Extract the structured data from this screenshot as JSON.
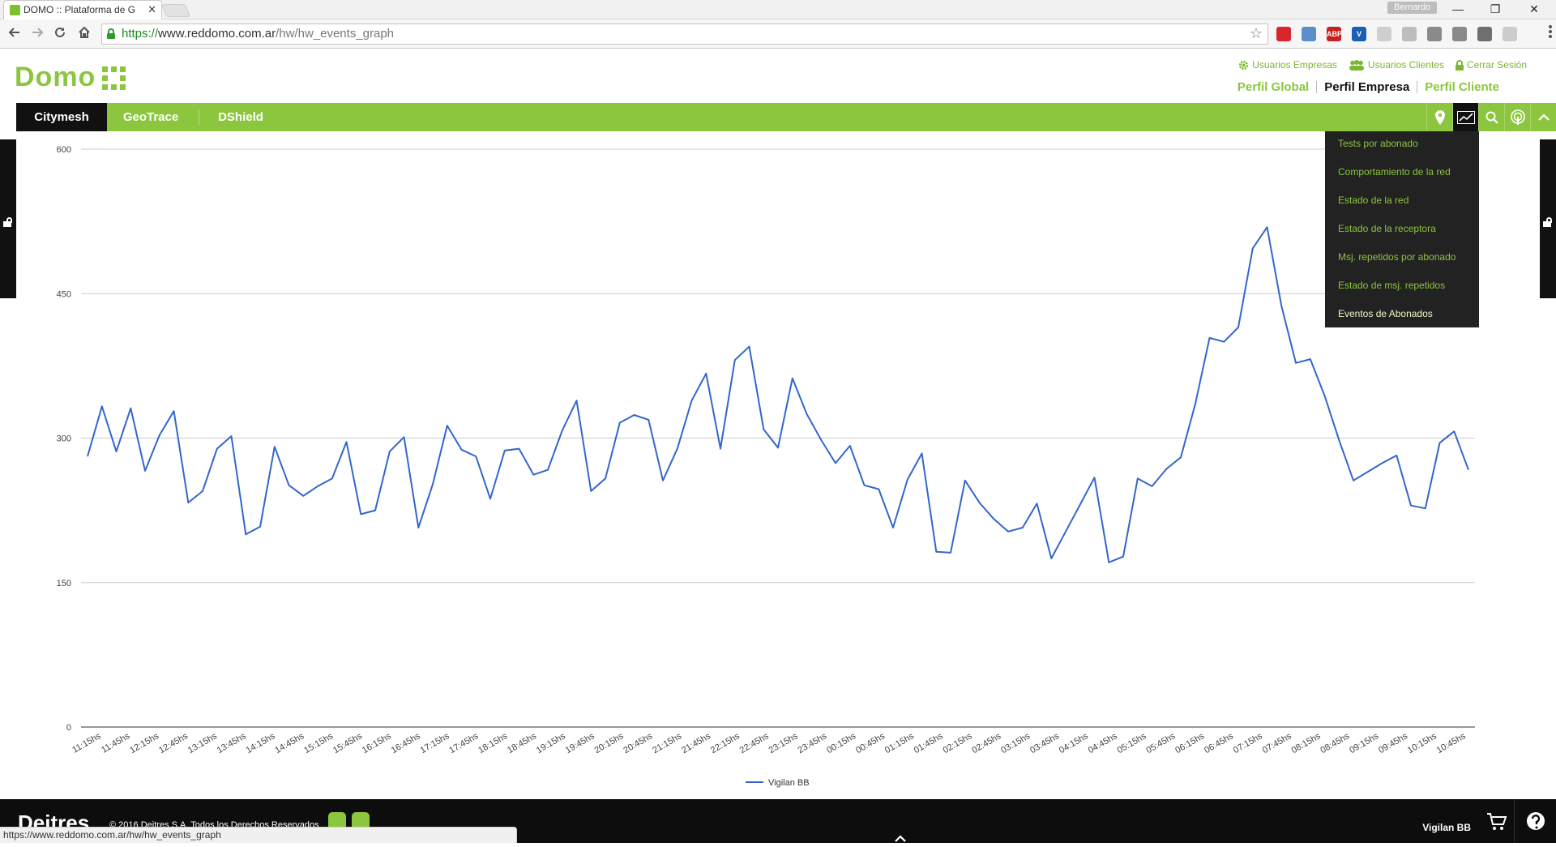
{
  "browser": {
    "tab_title": "DOMO :: Plataforma de G",
    "tab_close": "✕",
    "profile_name": "Bernardo",
    "window_buttons": [
      "—",
      "❐",
      "✕"
    ],
    "url_protocol": "https://",
    "url_host": "www.reddomo.com.ar",
    "url_path": "/hw/hw_events_graph",
    "extensions": [
      {
        "name": "book-ext",
        "label": "",
        "color": "#d9262c"
      },
      {
        "name": "map-ext",
        "label": "",
        "color": "#5b8fc9"
      },
      {
        "name": "abp-ext",
        "label": "ABP",
        "color": "#c91f1f"
      },
      {
        "name": "v-ext",
        "label": "V",
        "color": "#1a5fb4"
      },
      {
        "name": "ghost-ext",
        "label": "",
        "color": "#cfcfcf"
      },
      {
        "name": "mouse-ext",
        "label": "",
        "color": "#bdbdbd"
      },
      {
        "name": "doc-ext",
        "label": "",
        "color": "#8a8a8a"
      },
      {
        "name": "chat-ext",
        "label": "",
        "color": "#8a8a8a"
      },
      {
        "name": "box-ext",
        "label": "",
        "color": "#6f6f6f"
      },
      {
        "name": "wand-ext",
        "label": "",
        "color": "#cccccc"
      }
    ],
    "status_url": "https://www.reddomo.com.ar/hw/hw_events_graph"
  },
  "header": {
    "logo_text": "Domo",
    "top_links": {
      "usuarios_empresas": "Usuarios Empresas",
      "usuarios_clientes": "Usuarios Clientes",
      "cerrar_sesion": "Cerrar Sesión"
    },
    "profile_links": {
      "global": "Perfil Global",
      "empresa": "Perfil Empresa",
      "cliente": "Perfil Cliente"
    }
  },
  "nav": {
    "items": [
      "Citymesh",
      "GeoTrace",
      "DShield"
    ],
    "active": "Citymesh",
    "tools": [
      "map-pin-icon",
      "chart-icon",
      "search-icon",
      "broadcast-icon",
      "chevron-up-icon"
    ]
  },
  "dropdown": {
    "items": [
      "Tests por abonado",
      "Comportamiento de la red",
      "Estado de la red",
      "Estado de la receptora",
      "Msj. repetidos por abonado",
      "Estado de msj. repetidos",
      "Eventos de Abonados"
    ],
    "selected": "Eventos de Abonados"
  },
  "chart_data": {
    "type": "line",
    "title": "",
    "xlabel": "",
    "ylabel": "",
    "ylim": [
      0,
      600
    ],
    "yticks": [
      0,
      150,
      300,
      450,
      600
    ],
    "grid": true,
    "legend_position": "bottom",
    "color": "#3366cc",
    "x_tick_labels": [
      "11:15hs",
      "11:45hs",
      "12:15hs",
      "12:45hs",
      "13:15hs",
      "13:45hs",
      "14:15hs",
      "14:45hs",
      "15:15hs",
      "15:45hs",
      "16:15hs",
      "16:45hs",
      "17:15hs",
      "17:45hs",
      "18:15hs",
      "18:45hs",
      "19:15hs",
      "19:45hs",
      "20:15hs",
      "20:45hs",
      "21:15hs",
      "21:45hs",
      "22:15hs",
      "22:45hs",
      "23:15hs",
      "23:45hs",
      "00:15hs",
      "00:45hs",
      "01:15hs",
      "01:45hs",
      "02:15hs",
      "02:45hs",
      "03:15hs",
      "03:45hs",
      "04:15hs",
      "04:45hs",
      "05:15hs",
      "05:45hs",
      "06:15hs",
      "06:45hs",
      "07:15hs",
      "07:45hs",
      "08:15hs",
      "08:45hs",
      "09:15hs",
      "09:45hs",
      "10:15hs",
      "10:45hs"
    ],
    "series": [
      {
        "name": "Vigilan BB",
        "values": [
          281,
          333,
          286,
          331,
          266,
          303,
          328,
          233,
          245,
          289,
          302,
          200,
          208,
          291,
          251,
          240,
          250,
          258,
          296,
          221,
          225,
          286,
          301,
          207,
          252,
          313,
          288,
          281,
          237,
          287,
          289,
          262,
          267,
          308,
          339,
          245,
          258,
          316,
          324,
          319,
          256,
          289,
          339,
          367,
          289,
          381,
          395,
          309,
          290,
          362,
          325,
          298,
          274,
          292,
          251,
          247,
          207,
          257,
          284,
          182,
          181,
          256,
          233,
          216,
          203,
          207,
          232,
          175,
          203,
          231,
          259,
          171,
          177,
          258,
          250,
          268,
          280,
          335,
          404,
          400,
          415,
          497,
          519,
          437,
          378,
          382,
          344,
          298,
          256,
          265,
          274,
          282,
          230,
          227,
          295,
          307,
          267
        ]
      }
    ]
  },
  "footer": {
    "logo_text": "Deitres",
    "copyright": "© 2016 Deitres S.A. Todos los Derechos Reservados",
    "user_name": "Vigilan BB"
  }
}
